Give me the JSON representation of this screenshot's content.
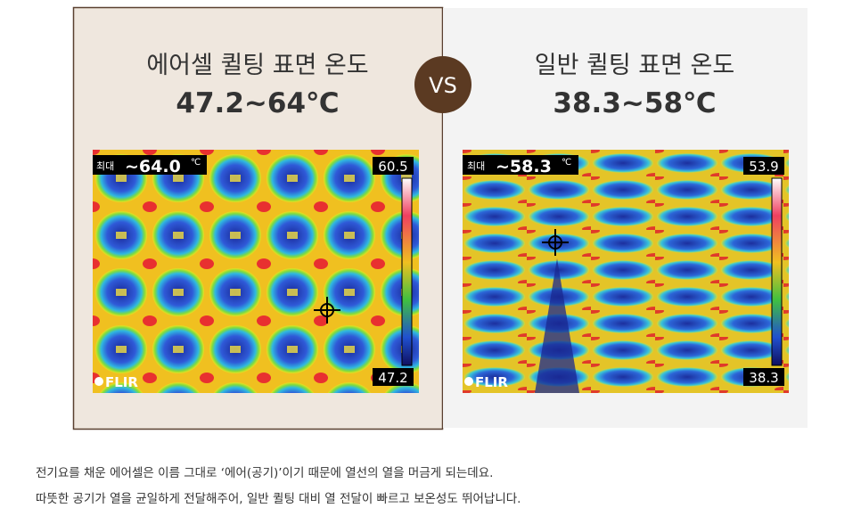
{
  "comparison": {
    "vs": "VS",
    "panels": [
      {
        "title": "에어셀 퀼팅 표면 온도",
        "range": "47.2~64℃",
        "thermal": {
          "max_label": "최대",
          "max_value": "~64.0",
          "unit": "℃",
          "scale_top": "60.5",
          "scale_bottom": "47.2",
          "brand": "FLIR"
        }
      },
      {
        "title": "일반 퀼팅 표면 온도",
        "range": "38.3~58℃",
        "thermal": {
          "max_label": "최대",
          "max_value": "~58.3",
          "unit": "℃",
          "scale_top": "53.9",
          "scale_bottom": "38.3",
          "brand": "FLIR"
        }
      }
    ]
  },
  "description": [
    "전기요를 채운 에어셀은 이름 그대로 ‘에어(공기)’이기 때문에 열선의 열을 머금게 되는데요.",
    "따뜻한 공기가 열을 균일하게 전달해주어, 일반 퀼팅 대비 열 전달이 빠르고 보온성도 뛰어납니다."
  ]
}
